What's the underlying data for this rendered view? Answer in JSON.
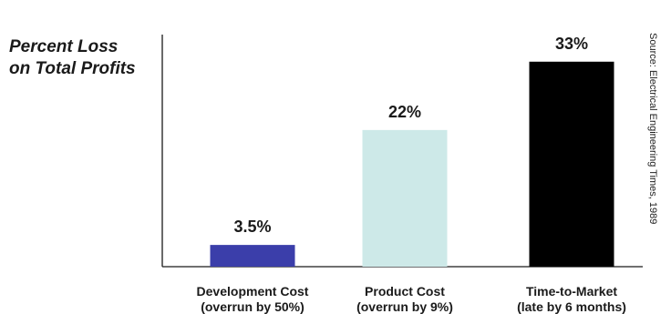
{
  "chart_data": {
    "type": "bar",
    "ylabel_line1": "Percent Loss",
    "ylabel_line2": "on Total Profits",
    "categories": [
      {
        "line1": "Development Cost",
        "line2": "(overrun by 50%)"
      },
      {
        "line1": "Product Cost",
        "line2": "(overrun by 9%)"
      },
      {
        "line1": "Time-to-Market",
        "line2": "(late by 6 months)"
      }
    ],
    "values": [
      3.5,
      22,
      33
    ],
    "value_labels": [
      "3.5%",
      "22%",
      "33%"
    ],
    "bar_colors": [
      "#3b3eaa",
      "#cde9e8",
      "#000000"
    ],
    "ylim": [
      0,
      40
    ],
    "grid": false,
    "source": "Source: Electrical Engineering Times, 1989"
  }
}
